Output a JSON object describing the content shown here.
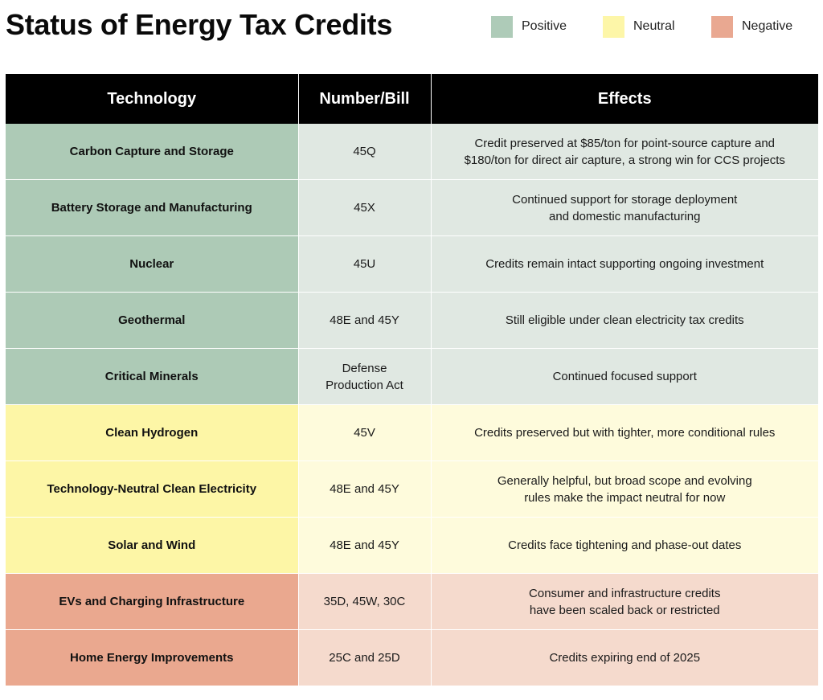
{
  "title": "Status of Energy Tax Credits",
  "legend": [
    {
      "label": "Positive",
      "color": "#aecbb8"
    },
    {
      "label": "Neutral",
      "color": "#fdf6a8"
    },
    {
      "label": "Negative",
      "color": "#e9a891"
    }
  ],
  "headers": {
    "technology": "Technology",
    "bill": "Number/Bill",
    "effects": "Effects"
  },
  "colors": {
    "positive_dark": "#adcab6",
    "positive_light": "#e0e8e2",
    "neutral_dark": "#fdf6a6",
    "neutral_light": "#fefbdc",
    "negative_dark": "#eaa88f",
    "negative_light": "#f5dacd"
  },
  "rows": [
    {
      "technology": "Carbon Capture and Storage",
      "bill": "45Q",
      "effects": "Credit preserved at $85/ton for point-source capture and\n$180/ton for direct air capture, a strong win for CCS projects",
      "status": "positive"
    },
    {
      "technology": "Battery Storage and Manufacturing",
      "bill": "45X",
      "effects": "Continued support for storage deployment\nand domestic manufacturing",
      "status": "positive"
    },
    {
      "technology": "Nuclear",
      "bill": "45U",
      "effects": "Credits remain intact supporting ongoing investment",
      "status": "positive"
    },
    {
      "technology": "Geothermal",
      "bill": "48E and 45Y",
      "effects": "Still eligible under clean electricity tax credits",
      "status": "positive"
    },
    {
      "technology": "Critical Minerals",
      "bill": "Defense\nProduction Act",
      "effects": "Continued focused support",
      "status": "positive"
    },
    {
      "technology": "Clean Hydrogen",
      "bill": "45V",
      "effects": "Credits preserved but with tighter, more conditional rules",
      "status": "neutral"
    },
    {
      "technology": "Technology-Neutral Clean Electricity",
      "bill": "48E and 45Y",
      "effects": "Generally helpful, but broad scope and evolving\nrules make the impact neutral for now",
      "status": "neutral"
    },
    {
      "technology": "Solar and Wind",
      "bill": "48E and 45Y",
      "effects": "Credits face tightening and phase-out dates",
      "status": "neutral"
    },
    {
      "technology": "EVs and Charging Infrastructure",
      "bill": "35D, 45W, 30C",
      "effects": "Consumer and infrastructure credits\nhave been scaled back or restricted",
      "status": "negative"
    },
    {
      "technology": "Home Energy Improvements",
      "bill": "25C and 25D",
      "effects": "Credits expiring end of 2025",
      "status": "negative"
    }
  ]
}
